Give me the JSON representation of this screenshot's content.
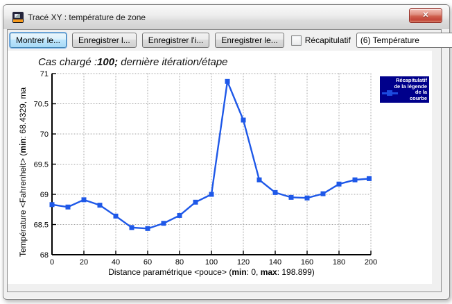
{
  "window": {
    "title": "Tracé XY : température de zone"
  },
  "icons": {
    "close": "✕"
  },
  "toolbar": {
    "buttons": [
      "Montrer le...",
      "Enregistrer l...",
      "Enregistrer l'i...",
      "Enregistrer le..."
    ],
    "checkbox_label": "Récapitulatif",
    "checkbox_checked": false,
    "combo_value": "(6) Température"
  },
  "chart_data": {
    "type": "line",
    "title": "Cas chargé :100; dernière itération/étape",
    "title_segments": [
      {
        "text": "Cas chargé :",
        "bold": false
      },
      {
        "text": "100;",
        "bold": true
      },
      {
        "text": " dernière itération/étape",
        "bold": false
      }
    ],
    "xlabel": "Distance paramétrique <pouce> (min: 0, max: 198.899)",
    "xlabel_segments": [
      {
        "text": "Distance paramétrique <pouce> (",
        "bold": false
      },
      {
        "text": "min",
        "bold": true
      },
      {
        "text": ": 0, ",
        "bold": false
      },
      {
        "text": "max",
        "bold": true
      },
      {
        "text": ": 198.899)",
        "bold": false
      }
    ],
    "ylabel": "Température <Fahrenheit> (min: 68.4329, ma",
    "ylabel_segments": [
      {
        "text": "Température <Fahrenheit> (",
        "bold": false
      },
      {
        "text": "min",
        "bold": true
      },
      {
        "text": ": 68.4329, ma",
        "bold": false
      }
    ],
    "xlim": [
      0,
      200
    ],
    "ylim": [
      68,
      71
    ],
    "x_ticks": [
      "0",
      "20",
      "40",
      "60",
      "80",
      "100",
      "120",
      "140",
      "160",
      "180",
      "200"
    ],
    "y_ticks": [
      "68",
      "68.5",
      "69",
      "69.5",
      "70",
      "70.5",
      "71"
    ],
    "grid": true,
    "legend": {
      "position": "top-right-outside-plot",
      "bg": "#00008b",
      "text_color": "#ffffff",
      "marker_color": "#1c4adf",
      "lines": [
        "Récapitulatif",
        "de la légende",
        "de la",
        "courbe"
      ]
    },
    "series": [
      {
        "name": "Récapitulatif de la légende de la courbe",
        "color": "#1e58e8",
        "marker": "square",
        "x": [
          0,
          10,
          20,
          30,
          40,
          50,
          60,
          70,
          80,
          90,
          100,
          110,
          120,
          130,
          140,
          150,
          160,
          170,
          180,
          190,
          198.9
        ],
        "y": [
          68.83,
          68.79,
          68.91,
          68.82,
          68.64,
          68.45,
          68.433,
          68.52,
          68.65,
          68.87,
          69.0,
          70.87,
          70.23,
          69.24,
          69.03,
          68.95,
          68.94,
          69.01,
          69.17,
          69.24,
          69.26
        ]
      }
    ]
  }
}
